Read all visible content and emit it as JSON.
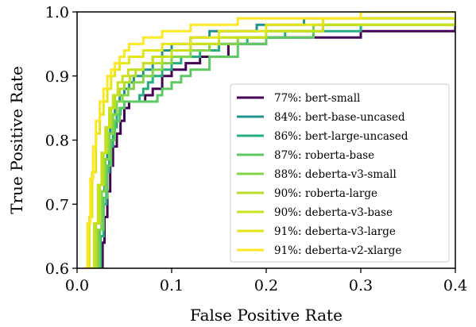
{
  "chart_data": {
    "type": "line",
    "title": "",
    "xlabel": "False Positive Rate",
    "ylabel": "True Positive Rate",
    "xlim": [
      0.0,
      0.4
    ],
    "ylim": [
      0.6,
      1.0
    ],
    "x_ticks": [
      "0.0",
      "0.1",
      "0.2",
      "0.3",
      "0.4"
    ],
    "y_ticks": [
      "0.6",
      "0.7",
      "0.8",
      "0.9",
      "1.0"
    ],
    "grid": false,
    "legend_position": "lower-right",
    "series": [
      {
        "name": "77%: bert-small",
        "color": "#440154",
        "x": [
          0.025,
          0.027,
          0.029,
          0.032,
          0.035,
          0.038,
          0.042,
          0.046,
          0.05,
          0.055,
          0.06,
          0.066,
          0.072,
          0.08,
          0.09,
          0.1,
          0.115,
          0.13,
          0.16,
          0.2,
          0.3,
          0.4
        ],
        "y": [
          0.6,
          0.64,
          0.68,
          0.72,
          0.76,
          0.79,
          0.81,
          0.83,
          0.85,
          0.86,
          0.86,
          0.86,
          0.87,
          0.88,
          0.9,
          0.91,
          0.92,
          0.93,
          0.95,
          0.96,
          0.97,
          0.98
        ]
      },
      {
        "name": "84%: bert-base-uncased",
        "color": "#21918c",
        "x": [
          0.02,
          0.023,
          0.026,
          0.029,
          0.032,
          0.035,
          0.04,
          0.045,
          0.05,
          0.055,
          0.06,
          0.07,
          0.08,
          0.09,
          0.1,
          0.12,
          0.14,
          0.16,
          0.19,
          0.24,
          0.4
        ],
        "y": [
          0.6,
          0.66,
          0.72,
          0.77,
          0.81,
          0.84,
          0.86,
          0.87,
          0.88,
          0.89,
          0.9,
          0.91,
          0.93,
          0.94,
          0.95,
          0.96,
          0.97,
          0.97,
          0.98,
          0.99,
          0.99
        ]
      },
      {
        "name": "86%: bert-large-uncased",
        "color": "#27ad81",
        "x": [
          0.022,
          0.025,
          0.028,
          0.031,
          0.034,
          0.038,
          0.042,
          0.046,
          0.05,
          0.055,
          0.06,
          0.066,
          0.07,
          0.075,
          0.08,
          0.09,
          0.1,
          0.11,
          0.13,
          0.15,
          0.18,
          0.22,
          0.3,
          0.4
        ],
        "y": [
          0.6,
          0.65,
          0.7,
          0.75,
          0.79,
          0.82,
          0.84,
          0.85,
          0.86,
          0.86,
          0.86,
          0.87,
          0.88,
          0.89,
          0.9,
          0.91,
          0.92,
          0.93,
          0.94,
          0.95,
          0.96,
          0.97,
          0.98,
          0.98
        ]
      },
      {
        "name": "87%: roberta-base",
        "color": "#5ec962",
        "x": [
          0.02,
          0.024,
          0.028,
          0.032,
          0.036,
          0.04,
          0.045,
          0.05,
          0.055,
          0.06,
          0.066,
          0.072,
          0.08,
          0.085,
          0.09,
          0.1,
          0.11,
          0.12,
          0.14,
          0.17,
          0.2,
          0.25,
          0.4
        ],
        "y": [
          0.6,
          0.66,
          0.71,
          0.76,
          0.8,
          0.83,
          0.85,
          0.86,
          0.86,
          0.86,
          0.86,
          0.86,
          0.86,
          0.87,
          0.88,
          0.89,
          0.9,
          0.91,
          0.93,
          0.95,
          0.96,
          0.98,
          0.98
        ]
      },
      {
        "name": "88%: deberta-v3-small",
        "color": "#84d44b",
        "x": [
          0.018,
          0.022,
          0.026,
          0.03,
          0.034,
          0.038,
          0.042,
          0.048,
          0.054,
          0.06,
          0.07,
          0.08,
          0.09,
          0.1,
          0.12,
          0.14,
          0.17,
          0.2,
          0.25,
          0.4
        ],
        "y": [
          0.6,
          0.66,
          0.72,
          0.77,
          0.81,
          0.84,
          0.86,
          0.87,
          0.88,
          0.89,
          0.9,
          0.91,
          0.92,
          0.93,
          0.94,
          0.95,
          0.96,
          0.97,
          0.98,
          0.99
        ]
      },
      {
        "name": "90%: roberta-large",
        "color": "#b5de2b",
        "x": [
          0.016,
          0.02,
          0.024,
          0.028,
          0.032,
          0.036,
          0.04,
          0.045,
          0.05,
          0.056,
          0.062,
          0.07,
          0.08,
          0.09,
          0.1,
          0.12,
          0.15,
          0.2,
          0.26,
          0.4
        ],
        "y": [
          0.6,
          0.67,
          0.73,
          0.78,
          0.82,
          0.85,
          0.87,
          0.88,
          0.89,
          0.9,
          0.91,
          0.92,
          0.92,
          0.93,
          0.94,
          0.95,
          0.96,
          0.97,
          0.98,
          0.99
        ]
      },
      {
        "name": "90%: deberta-v3-base",
        "color": "#c8e020",
        "x": [
          0.014,
          0.018,
          0.022,
          0.026,
          0.03,
          0.034,
          0.038,
          0.043,
          0.048,
          0.054,
          0.06,
          0.07,
          0.08,
          0.09,
          0.1,
          0.12,
          0.15,
          0.2,
          0.26,
          0.4
        ],
        "y": [
          0.6,
          0.67,
          0.73,
          0.78,
          0.82,
          0.85,
          0.87,
          0.89,
          0.9,
          0.91,
          0.91,
          0.92,
          0.93,
          0.93,
          0.94,
          0.95,
          0.96,
          0.97,
          0.98,
          0.98
        ]
      },
      {
        "name": "91%: deberta-v3-large",
        "color": "#e4e419",
        "x": [
          0.01,
          0.013,
          0.016,
          0.02,
          0.024,
          0.028,
          0.032,
          0.036,
          0.04,
          0.045,
          0.05,
          0.055,
          0.06,
          0.07,
          0.08,
          0.09,
          0.1,
          0.12,
          0.15,
          0.2,
          0.26,
          0.4
        ],
        "y": [
          0.6,
          0.68,
          0.75,
          0.81,
          0.84,
          0.86,
          0.88,
          0.9,
          0.91,
          0.92,
          0.92,
          0.93,
          0.93,
          0.94,
          0.94,
          0.95,
          0.95,
          0.96,
          0.97,
          0.98,
          0.99,
          0.99
        ]
      },
      {
        "name": "91%: deberta-v2-xlarge",
        "color": "#fde725",
        "x": [
          0.008,
          0.011,
          0.014,
          0.017,
          0.02,
          0.024,
          0.028,
          0.032,
          0.036,
          0.04,
          0.045,
          0.05,
          0.055,
          0.06,
          0.07,
          0.08,
          0.09,
          0.1,
          0.12,
          0.14,
          0.17,
          0.22,
          0.3,
          0.4
        ],
        "y": [
          0.6,
          0.67,
          0.74,
          0.79,
          0.83,
          0.86,
          0.88,
          0.9,
          0.91,
          0.92,
          0.93,
          0.94,
          0.95,
          0.95,
          0.96,
          0.96,
          0.97,
          0.97,
          0.98,
          0.98,
          0.99,
          0.99,
          1.0,
          1.0
        ]
      }
    ]
  }
}
